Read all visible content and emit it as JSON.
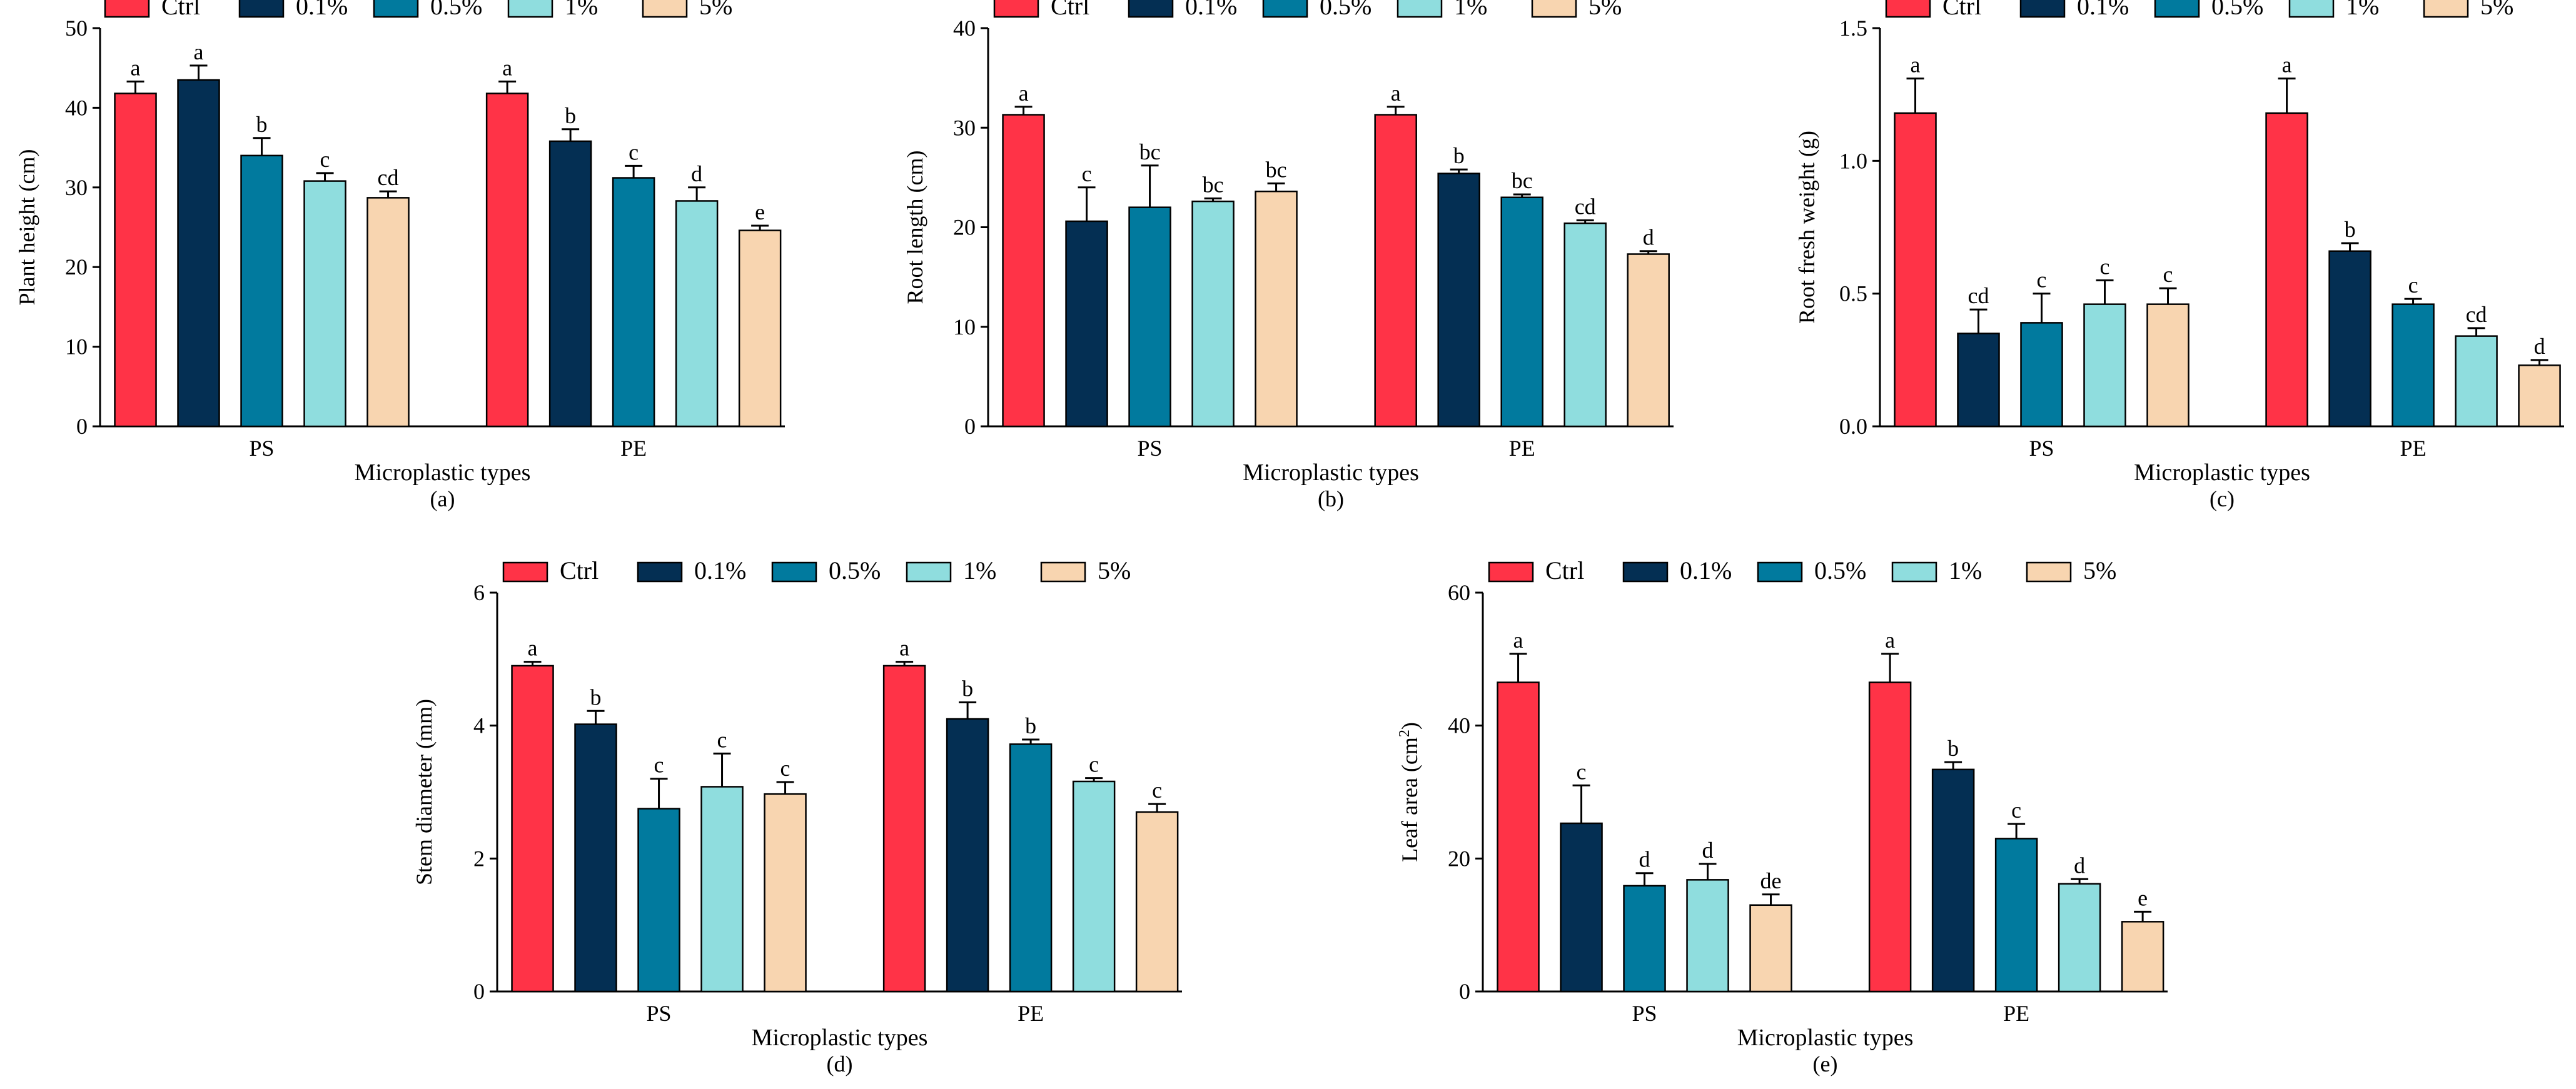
{
  "legend": {
    "labels": [
      "Ctrl",
      "0.1%",
      "0.5%",
      "1%",
      "5%"
    ],
    "colors": [
      "#FF3347",
      "#042F53",
      "#017A9E",
      "#8FDDDE",
      "#F8D5B0"
    ]
  },
  "chart_data": [
    {
      "type": "bar",
      "panel": "(a)",
      "ylabel": "Plant height (cm)",
      "xlabel": "Microplastic types",
      "ylim": [
        0,
        50
      ],
      "yticks": [
        0,
        10,
        20,
        30,
        40,
        50
      ],
      "categories": [
        "PS",
        "PE"
      ],
      "series": [
        {
          "name": "Ctrl",
          "values": [
            41.8,
            41.8
          ],
          "errors": [
            1.5,
            1.5
          ],
          "letters": [
            "a",
            "a"
          ]
        },
        {
          "name": "0.1%",
          "values": [
            43.5,
            35.8
          ],
          "errors": [
            1.8,
            1.5
          ],
          "letters": [
            "a",
            "b"
          ]
        },
        {
          "name": "0.5%",
          "values": [
            34.0,
            31.2
          ],
          "errors": [
            2.2,
            1.5
          ],
          "letters": [
            "b",
            "c"
          ]
        },
        {
          "name": "1%",
          "values": [
            30.8,
            28.3
          ],
          "errors": [
            1.0,
            1.7
          ],
          "letters": [
            "c",
            "d"
          ]
        },
        {
          "name": "5%",
          "values": [
            28.7,
            24.6
          ],
          "errors": [
            0.8,
            0.6
          ],
          "letters": [
            "cd",
            "e"
          ]
        }
      ]
    },
    {
      "type": "bar",
      "panel": "(b)",
      "ylabel": "Root length (cm)",
      "xlabel": "Microplastic types",
      "ylim": [
        0,
        40
      ],
      "yticks": [
        0,
        10,
        20,
        30,
        40
      ],
      "categories": [
        "PS",
        "PE"
      ],
      "series": [
        {
          "name": "Ctrl",
          "values": [
            31.3,
            31.3
          ],
          "errors": [
            0.8,
            0.8
          ],
          "letters": [
            "a",
            "a"
          ]
        },
        {
          "name": "0.1%",
          "values": [
            20.6,
            25.4
          ],
          "errors": [
            3.4,
            0.4
          ],
          "letters": [
            "c",
            "b"
          ]
        },
        {
          "name": "0.5%",
          "values": [
            22.0,
            23.0
          ],
          "errors": [
            4.2,
            0.3
          ],
          "letters": [
            "bc",
            "bc"
          ]
        },
        {
          "name": "1%",
          "values": [
            22.6,
            20.4
          ],
          "errors": [
            0.3,
            0.3
          ],
          "letters": [
            "bc",
            "cd"
          ]
        },
        {
          "name": "5%",
          "values": [
            23.6,
            17.3
          ],
          "errors": [
            0.8,
            0.3
          ],
          "letters": [
            "bc",
            "d"
          ]
        }
      ]
    },
    {
      "type": "bar",
      "panel": "(c)",
      "ylabel": "Root fresh weight (g)",
      "xlabel": "Microplastic types",
      "ylim": [
        0,
        1.5
      ],
      "yticks": [
        0.0,
        0.5,
        1.0,
        1.5
      ],
      "tick_decimals": 1,
      "categories": [
        "PS",
        "PE"
      ],
      "series": [
        {
          "name": "Ctrl",
          "values": [
            1.18,
            1.18
          ],
          "errors": [
            0.13,
            0.13
          ],
          "letters": [
            "a",
            "a"
          ]
        },
        {
          "name": "0.1%",
          "values": [
            0.35,
            0.66
          ],
          "errors": [
            0.09,
            0.03
          ],
          "letters": [
            "cd",
            "b"
          ]
        },
        {
          "name": "0.5%",
          "values": [
            0.39,
            0.46
          ],
          "errors": [
            0.11,
            0.02
          ],
          "letters": [
            "c",
            "c"
          ]
        },
        {
          "name": "1%",
          "values": [
            0.46,
            0.34
          ],
          "errors": [
            0.09,
            0.03
          ],
          "letters": [
            "c",
            "cd"
          ]
        },
        {
          "name": "5%",
          "values": [
            0.46,
            0.23
          ],
          "errors": [
            0.06,
            0.02
          ],
          "letters": [
            "c",
            "d"
          ]
        }
      ]
    },
    {
      "type": "bar",
      "panel": "(d)",
      "ylabel": "Stem diameter (mm)",
      "xlabel": "Microplastic types",
      "ylim": [
        0,
        6
      ],
      "yticks": [
        0,
        2,
        4,
        6
      ],
      "categories": [
        "PS",
        "PE"
      ],
      "series": [
        {
          "name": "Ctrl",
          "values": [
            4.9,
            4.9
          ],
          "errors": [
            0.06,
            0.06
          ],
          "letters": [
            "a",
            "a"
          ]
        },
        {
          "name": "0.1%",
          "values": [
            4.02,
            4.1
          ],
          "errors": [
            0.2,
            0.25
          ],
          "letters": [
            "b",
            "b"
          ]
        },
        {
          "name": "0.5%",
          "values": [
            2.75,
            3.72
          ],
          "errors": [
            0.45,
            0.07
          ],
          "letters": [
            "c",
            "b"
          ]
        },
        {
          "name": "1%",
          "values": [
            3.08,
            3.16
          ],
          "errors": [
            0.5,
            0.05
          ],
          "letters": [
            "c",
            "c"
          ]
        },
        {
          "name": "5%",
          "values": [
            2.97,
            2.7
          ],
          "errors": [
            0.18,
            0.12
          ],
          "letters": [
            "c",
            "c"
          ]
        }
      ]
    },
    {
      "type": "bar",
      "panel": "(e)",
      "ylabel": "Leaf area (cm",
      "ylabel_sup": "2",
      "ylabel_end": ")",
      "xlabel": "Microplastic types",
      "ylim": [
        0,
        60
      ],
      "yticks": [
        0,
        20,
        40,
        60
      ],
      "categories": [
        "PS",
        "PE"
      ],
      "series": [
        {
          "name": "Ctrl",
          "values": [
            46.5,
            46.5
          ],
          "errors": [
            4.3,
            4.3
          ],
          "letters": [
            "a",
            "a"
          ]
        },
        {
          "name": "0.1%",
          "values": [
            25.3,
            33.4
          ],
          "errors": [
            5.7,
            1.1
          ],
          "letters": [
            "c",
            "b"
          ]
        },
        {
          "name": "0.5%",
          "values": [
            15.9,
            23.0
          ],
          "errors": [
            1.9,
            2.2
          ],
          "letters": [
            "d",
            "c"
          ]
        },
        {
          "name": "1%",
          "values": [
            16.8,
            16.2
          ],
          "errors": [
            2.4,
            0.7
          ],
          "letters": [
            "d",
            "d"
          ]
        },
        {
          "name": "5%",
          "values": [
            13.0,
            10.5
          ],
          "errors": [
            1.6,
            1.5
          ],
          "letters": [
            "de",
            "e"
          ]
        }
      ]
    }
  ]
}
